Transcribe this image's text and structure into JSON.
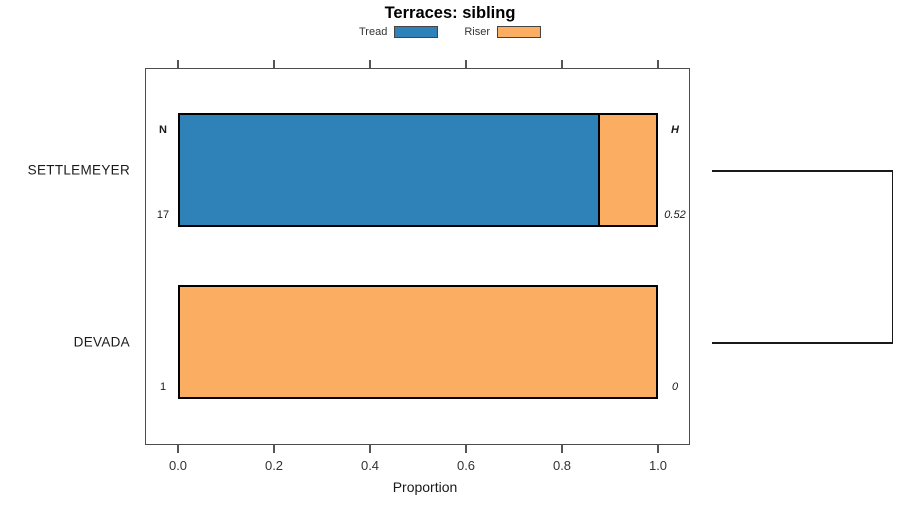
{
  "chart_data": {
    "type": "bar",
    "orientation": "horizontal",
    "stacked": true,
    "title": "Terraces: sibling",
    "xlabel": "Proportion",
    "xlim": [
      0,
      1
    ],
    "xticks": {
      "values": [
        0,
        0.2,
        0.4,
        0.6,
        0.8,
        1.0
      ],
      "labels": [
        "0.0",
        "0.2",
        "0.4",
        "0.6",
        "0.8",
        "1.0"
      ]
    },
    "categories": [
      "SETTLEMEYER",
      "DEVADA"
    ],
    "series": [
      {
        "name": "Tread",
        "color": "#2e82b8",
        "values": [
          0.88,
          0
        ]
      },
      {
        "name": "Riser",
        "color": "#fbad61",
        "values": [
          0.12,
          1.0
        ]
      }
    ],
    "annotations": {
      "left_header": "N",
      "right_header": "H",
      "left_values": [
        "17",
        "1"
      ],
      "right_values": [
        "0.52",
        "0"
      ]
    },
    "legend_position": "top",
    "grid": false,
    "right_bracket": {
      "connects": [
        "SETTLEMEYER",
        "DEVADA"
      ]
    },
    "colors": {
      "tread": "#2e82b8",
      "riser": "#fbad61",
      "bar_border": "#000000",
      "frame": "#4d4d4d",
      "tick": "#555555"
    }
  }
}
